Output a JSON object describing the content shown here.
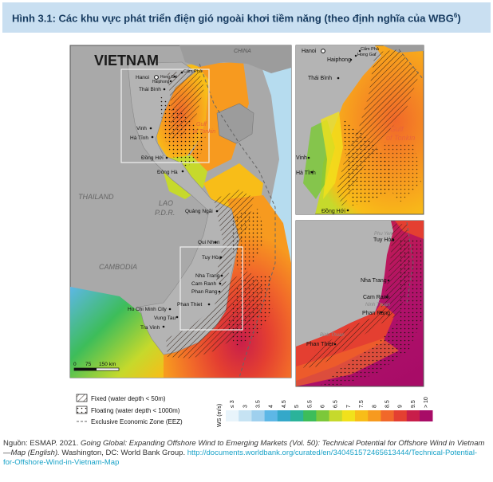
{
  "figure": {
    "title_prefix": "Hình 3.1: Các khu vực phát triển điện gió ngoài khơi tiềm năng (theo định nghĩa của WBG",
    "title_sup": "6",
    "title_suffix": ")"
  },
  "map": {
    "heading": "VIETNAM",
    "country_labels": {
      "china": "CHINA",
      "thailand": "THAILAND",
      "lao": "LAO",
      "pdr": "P.D.R.",
      "cambodia": "CAMBODIA"
    },
    "sea_labels": {
      "gulf": "Gulf",
      "of_tonkin": "of Tonkin",
      "phu_yen": "Phu Yen",
      "ninh_thuan": "Ninh Thuan",
      "binh_thuan": "Binh Thuan"
    },
    "cities": {
      "hanoi": "Hanoi",
      "cam_pha": "Cẩm Phả",
      "hong_gai": "Hong Gai",
      "haiphong": "Haiphong",
      "thai_binh": "Thái Bình",
      "vinh": "Vinh",
      "ha_tinh": "Hà Tĩnh",
      "dong_hoi": "Đồng Hới",
      "dong_ha": "Đông Hà",
      "quang_ngai": "Quảng Ngãi",
      "qui_nhon": "Qui Nhon",
      "tuy_hoa": "Tuy Hòa",
      "nha_trang": "Nha Trang",
      "cam_ranh": "Cam Ranh",
      "phan_rang": "Phan Rang",
      "phan_thiet": "Phan Thiet",
      "ho_chi_minh": "Ho Chi Minh City",
      "vung_tau": "Vung Tau",
      "tra_vinh": "Tra Vinh"
    },
    "scale": {
      "zero": "0",
      "mid": "75",
      "end": "150 km"
    }
  },
  "legend": {
    "fixed": "Fixed (water depth < 50m)",
    "floating": "Floating (water depth < 1000m)",
    "eez": "Exclusive Economic Zone (EEZ)",
    "ws_label": "WS (m/s)",
    "ticks": [
      "≤ 3",
      "3",
      "3.5",
      "4",
      "4.5",
      "5",
      "5.5",
      "6",
      "6.5",
      "7",
      "7.5",
      "8",
      "8.5",
      "9",
      "9.5",
      "> 10"
    ],
    "colors": [
      "#e8f4fb",
      "#c6e3f3",
      "#9fd0ee",
      "#5db7e6",
      "#34a8c9",
      "#2bb39a",
      "#3dbd5a",
      "#7cc83a",
      "#c6d92c",
      "#f1e11b",
      "#f8bd18",
      "#f79a1f",
      "#f1682a",
      "#e43f31",
      "#c81e4a",
      "#a80c67"
    ]
  },
  "source": {
    "prefix": "Nguồn: ESMAP. 2021. ",
    "title_italic": "Going Global: Expanding Offshore Wind to Emerging Markets (Vol. 50): Technical Potential for Offshore Wind in Vietnam—Map (English).",
    "publisher": " Washington, DC: World Bank Group. ",
    "url": "http://documents.worldbank.org/curated/en/340451572465613444/Technical-Potential-for-Offshore-Wind-in-Vietnam-Map"
  }
}
